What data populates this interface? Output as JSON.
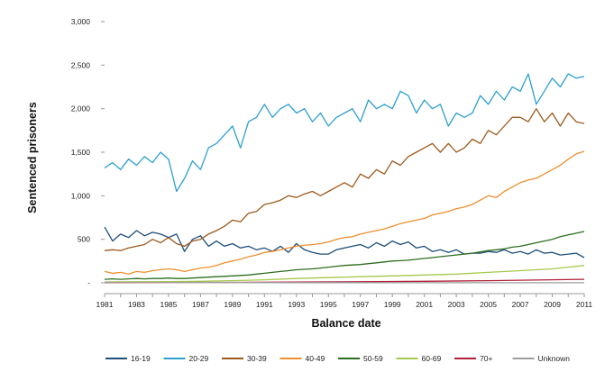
{
  "chart_data": {
    "type": "line",
    "title": "",
    "xlabel": "Balance date",
    "ylabel": "Sentenced prisoners",
    "xlim": [
      1981,
      2011
    ],
    "ylim": [
      0,
      3000
    ],
    "x_ticks": [
      1981,
      1983,
      1985,
      1987,
      1989,
      1991,
      1993,
      1995,
      1997,
      1999,
      2001,
      2003,
      2005,
      2007,
      2009,
      2011
    ],
    "x_tick_labels": [
      "1981",
      "1983",
      "1985",
      "1987",
      "1989",
      "1991",
      "1993",
      "1995",
      "1997",
      "1999",
      "2001",
      "2003",
      "2005",
      "2007",
      "2009",
      "2011"
    ],
    "y_ticks": [
      0,
      500,
      1000,
      1500,
      2000,
      2500,
      3000
    ],
    "y_tick_labels": [
      "-",
      "500",
      "1,000",
      "1,500",
      "2,000",
      "2,500",
      "3,000"
    ],
    "grid": false,
    "legend_position": "bottom",
    "series": [
      {
        "name": "16-19",
        "color": "#1f4e79",
        "x": [
          1981,
          1981.5,
          1982,
          1982.5,
          1983,
          1983.5,
          1984,
          1984.5,
          1985,
          1985.5,
          1986,
          1986.5,
          1987,
          1987.5,
          1988,
          1988.5,
          1989,
          1989.5,
          1990,
          1990.5,
          1991,
          1991.5,
          1992,
          1992.5,
          1993,
          1993.5,
          1994,
          1994.5,
          1995,
          1995.5,
          1996,
          1996.5,
          1997,
          1997.5,
          1998,
          1998.5,
          1999,
          1999.5,
          2000,
          2000.5,
          2001,
          2001.5,
          2002,
          2002.5,
          2003,
          2003.5,
          2004,
          2004.5,
          2005,
          2005.5,
          2006,
          2006.5,
          2007,
          2007.5,
          2008,
          2008.5,
          2009,
          2009.5,
          2010,
          2010.5,
          2011
        ],
        "y": [
          640,
          480,
          560,
          520,
          600,
          540,
          580,
          560,
          520,
          560,
          360,
          500,
          540,
          420,
          480,
          420,
          450,
          400,
          420,
          380,
          400,
          360,
          420,
          350,
          450,
          380,
          350,
          330,
          330,
          380,
          400,
          420,
          440,
          400,
          460,
          420,
          480,
          440,
          470,
          400,
          420,
          360,
          380,
          350,
          380,
          330,
          340,
          340,
          360,
          350,
          380,
          340,
          360,
          330,
          380,
          340,
          350,
          320,
          330,
          340,
          290
        ]
      },
      {
        "name": "20-29",
        "color": "#2e9fcf",
        "x": [
          1981,
          1981.5,
          1982,
          1982.5,
          1983,
          1983.5,
          1984,
          1984.5,
          1985,
          1985.5,
          1986,
          1986.5,
          1987,
          1987.5,
          1988,
          1988.5,
          1989,
          1989.5,
          1990,
          1990.5,
          1991,
          1991.5,
          1992,
          1992.5,
          1993,
          1993.5,
          1994,
          1994.5,
          1995,
          1995.5,
          1996,
          1996.5,
          1997,
          1997.5,
          1998,
          1998.5,
          1999,
          1999.5,
          2000,
          2000.5,
          2001,
          2001.5,
          2002,
          2002.5,
          2003,
          2003.5,
          2004,
          2004.5,
          2005,
          2005.5,
          2006,
          2006.5,
          2007,
          2007.5,
          2008,
          2008.5,
          2009,
          2009.5,
          2010,
          2010.5,
          2011
        ],
        "y": [
          1320,
          1380,
          1300,
          1420,
          1350,
          1450,
          1380,
          1500,
          1420,
          1050,
          1200,
          1400,
          1300,
          1550,
          1600,
          1700,
          1800,
          1550,
          1850,
          1900,
          2050,
          1900,
          2000,
          2050,
          1950,
          2000,
          1850,
          1950,
          1800,
          1900,
          1950,
          2000,
          1850,
          2100,
          2000,
          2050,
          2000,
          2200,
          2150,
          1950,
          2100,
          2000,
          2050,
          1800,
          1950,
          1900,
          1950,
          2150,
          2050,
          2200,
          2100,
          2250,
          2200,
          2400,
          2050,
          2200,
          2350,
          2250,
          2400,
          2350,
          2370
        ]
      },
      {
        "name": "30-39",
        "color": "#9c5a1c",
        "x": [
          1981,
          1981.5,
          1982,
          1982.5,
          1983,
          1983.5,
          1984,
          1984.5,
          1985,
          1985.5,
          1986,
          1986.5,
          1987,
          1987.5,
          1988,
          1988.5,
          1989,
          1989.5,
          1990,
          1990.5,
          1991,
          1991.5,
          1992,
          1992.5,
          1993,
          1993.5,
          1994,
          1994.5,
          1995,
          1995.5,
          1996,
          1996.5,
          1997,
          1997.5,
          1998,
          1998.5,
          1999,
          1999.5,
          2000,
          2000.5,
          2001,
          2001.5,
          2002,
          2002.5,
          2003,
          2003.5,
          2004,
          2004.5,
          2005,
          2005.5,
          2006,
          2006.5,
          2007,
          2007.5,
          2008,
          2008.5,
          2009,
          2009.5,
          2010,
          2010.5,
          2011
        ],
        "y": [
          370,
          380,
          370,
          400,
          420,
          440,
          500,
          460,
          520,
          450,
          420,
          480,
          500,
          560,
          600,
          650,
          720,
          700,
          800,
          820,
          900,
          920,
          950,
          1000,
          980,
          1020,
          1050,
          1000,
          1050,
          1100,
          1150,
          1100,
          1250,
          1200,
          1300,
          1250,
          1400,
          1350,
          1450,
          1500,
          1550,
          1600,
          1500,
          1600,
          1500,
          1550,
          1650,
          1600,
          1750,
          1700,
          1800,
          1900,
          1900,
          1850,
          2000,
          1850,
          1950,
          1800,
          1950,
          1850,
          1830
        ]
      },
      {
        "name": "40-49",
        "color": "#ee8f2e",
        "x": [
          1981,
          1981.5,
          1982,
          1982.5,
          1983,
          1983.5,
          1984,
          1984.5,
          1985,
          1985.5,
          1986,
          1986.5,
          1987,
          1987.5,
          1988,
          1988.5,
          1989,
          1989.5,
          1990,
          1990.5,
          1991,
          1991.5,
          1992,
          1992.5,
          1993,
          1993.5,
          1994,
          1994.5,
          1995,
          1995.5,
          1996,
          1996.5,
          1997,
          1997.5,
          1998,
          1998.5,
          1999,
          1999.5,
          2000,
          2000.5,
          2001,
          2001.5,
          2002,
          2002.5,
          2003,
          2003.5,
          2004,
          2004.5,
          2005,
          2005.5,
          2006,
          2006.5,
          2007,
          2007.5,
          2008,
          2008.5,
          2009,
          2009.5,
          2010,
          2010.5,
          2011
        ],
        "y": [
          130,
          110,
          120,
          100,
          130,
          120,
          140,
          150,
          160,
          150,
          130,
          150,
          170,
          180,
          200,
          230,
          250,
          270,
          300,
          320,
          350,
          360,
          380,
          400,
          420,
          430,
          440,
          450,
          470,
          500,
          520,
          530,
          560,
          580,
          600,
          620,
          650,
          680,
          700,
          720,
          740,
          780,
          800,
          820,
          850,
          870,
          900,
          950,
          1000,
          980,
          1050,
          1100,
          1150,
          1180,
          1200,
          1250,
          1300,
          1350,
          1420,
          1480,
          1510
        ]
      },
      {
        "name": "50-59",
        "color": "#2d6e1f",
        "x": [
          1981,
          1981.5,
          1982,
          1982.5,
          1983,
          1983.5,
          1984,
          1984.5,
          1985,
          1985.5,
          1986,
          1986.5,
          1987,
          1987.5,
          1988,
          1988.5,
          1989,
          1989.5,
          1990,
          1990.5,
          1991,
          1991.5,
          1992,
          1992.5,
          1993,
          1993.5,
          1994,
          1994.5,
          1995,
          1995.5,
          1996,
          1996.5,
          1997,
          1997.5,
          1998,
          1998.5,
          1999,
          1999.5,
          2000,
          2000.5,
          2001,
          2001.5,
          2002,
          2002.5,
          2003,
          2003.5,
          2004,
          2004.5,
          2005,
          2005.5,
          2006,
          2006.5,
          2007,
          2007.5,
          2008,
          2008.5,
          2009,
          2009.5,
          2010,
          2010.5,
          2011
        ],
        "y": [
          40,
          45,
          40,
          45,
          50,
          45,
          50,
          50,
          55,
          50,
          50,
          55,
          60,
          65,
          70,
          75,
          80,
          85,
          90,
          100,
          110,
          120,
          130,
          140,
          150,
          155,
          160,
          170,
          180,
          190,
          200,
          205,
          210,
          220,
          230,
          240,
          250,
          255,
          260,
          270,
          280,
          290,
          300,
          310,
          320,
          330,
          340,
          355,
          370,
          380,
          390,
          410,
          420,
          440,
          460,
          480,
          500,
          530,
          550,
          570,
          590
        ]
      },
      {
        "name": "60-69",
        "color": "#a5c94a",
        "x": [
          1981,
          1983,
          1985,
          1987,
          1989,
          1991,
          1993,
          1995,
          1997,
          1999,
          2001,
          2003,
          2005,
          2007,
          2009,
          2010,
          2011
        ],
        "y": [
          10,
          12,
          14,
          18,
          25,
          35,
          50,
          60,
          70,
          80,
          90,
          100,
          120,
          140,
          160,
          180,
          200
        ]
      },
      {
        "name": "70+",
        "color": "#b0213a",
        "x": [
          1981,
          1985,
          1989,
          1993,
          1997,
          2001,
          2005,
          2009,
          2011
        ],
        "y": [
          3,
          4,
          5,
          8,
          12,
          18,
          25,
          35,
          40
        ]
      },
      {
        "name": "Unknown",
        "color": "#9e9e9e",
        "x": [
          1981,
          1985,
          1989,
          1993,
          1997,
          2001,
          2005,
          2009,
          2011
        ],
        "y": [
          5,
          5,
          3,
          2,
          2,
          1,
          1,
          1,
          1
        ]
      }
    ]
  }
}
